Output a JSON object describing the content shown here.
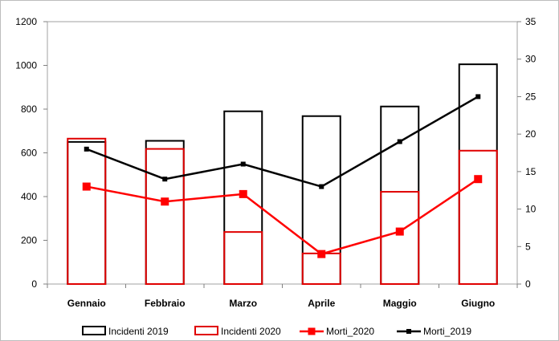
{
  "chart_data": {
    "type": "bar",
    "categories": [
      "Gennaio",
      "Febbraio",
      "Marzo",
      "Aprile",
      "Maggio",
      "Giugno"
    ],
    "bar_series": [
      {
        "name": "Incidenti 2019",
        "values": [
          650,
          655,
          790,
          768,
          812,
          1005
        ],
        "color": "#000000"
      },
      {
        "name": "Incidenti 2020",
        "values": [
          665,
          618,
          238,
          140,
          422,
          610
        ],
        "color": "#e00000"
      }
    ],
    "line_series": [
      {
        "name": "Morti_2020",
        "values": [
          13,
          11,
          12,
          4,
          7,
          14
        ],
        "color": "#ff0000",
        "axis": "right"
      },
      {
        "name": "Morti_2019",
        "values": [
          18,
          14,
          16,
          13,
          19,
          25
        ],
        "color": "#000000",
        "axis": "right"
      }
    ],
    "y_left": {
      "ylim": [
        0,
        1200
      ],
      "ticks": [
        "0",
        "200",
        "400",
        "600",
        "800",
        "1000",
        "1200"
      ]
    },
    "y_right": {
      "ylim": [
        0,
        35
      ],
      "ticks": [
        "0",
        "5",
        "10",
        "15",
        "20",
        "25",
        "30",
        "35"
      ]
    },
    "legend": {
      "position": "bottom",
      "items": [
        "Incidenti 2019",
        "Incidenti 2020",
        "Morti_2020",
        "Morti_2019"
      ]
    },
    "grid": false,
    "title": "",
    "xlabel": "",
    "ylabel": ""
  }
}
